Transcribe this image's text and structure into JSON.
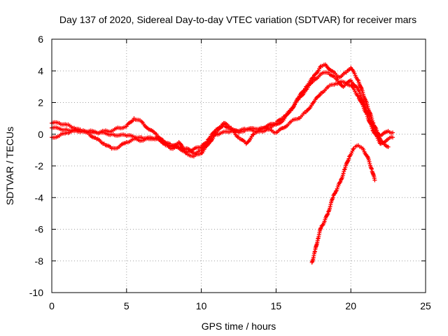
{
  "chart_data": {
    "type": "scatter",
    "title": "Day 137 of 2020, Sidereal Day-to-day VTEC variation (SDTVAR) for receiver mars",
    "xlabel": "GPS time / hours",
    "ylabel": "SDTVAR / TECUs",
    "xlim": [
      0,
      25
    ],
    "ylim": [
      -10,
      6
    ],
    "xticks": [
      0,
      5,
      10,
      15,
      20,
      25
    ],
    "yticks": [
      -10,
      -8,
      -6,
      -4,
      -2,
      0,
      2,
      4,
      6
    ],
    "grid": true,
    "marker": "+",
    "marker_color": "#ff0000",
    "series": [
      {
        "x": [
          0.0,
          0.5,
          1.0,
          1.5,
          2.0,
          2.5,
          3.0,
          3.5,
          4.0,
          4.5,
          5.0,
          5.5,
          6.0,
          6.5,
          7.0,
          7.5,
          8.0,
          8.5,
          9.0,
          9.5,
          10.0,
          10.5,
          11.0,
          11.5,
          12.0,
          12.5,
          13.0,
          13.5,
          14.0,
          14.5,
          15.0,
          15.5,
          16.0,
          16.5,
          17.0,
          17.5,
          18.0,
          18.5,
          19.0,
          19.5,
          20.0,
          20.5,
          21.0,
          21.5,
          22.0,
          22.5,
          22.8
        ],
        "y": [
          0.7,
          0.7,
          0.6,
          0.4,
          0.2,
          0.2,
          0.1,
          0.2,
          0.2,
          0.4,
          0.5,
          1.0,
          0.8,
          0.3,
          0.0,
          -0.5,
          -0.9,
          -0.8,
          -0.9,
          -1.2,
          -1.0,
          -0.3,
          0.3,
          0.7,
          0.4,
          0.1,
          0.3,
          0.2,
          0.3,
          0.4,
          0.6,
          0.9,
          1.6,
          2.2,
          2.8,
          3.4,
          3.8,
          3.9,
          3.5,
          3.0,
          3.4,
          2.8,
          1.6,
          0.4,
          -0.1,
          0.2,
          0.1
        ]
      },
      {
        "x": [
          0.0,
          0.5,
          1.0,
          1.5,
          2.0,
          2.5,
          3.0,
          3.5,
          4.0,
          4.5,
          5.0,
          5.5,
          6.0,
          6.5,
          7.0,
          7.5,
          8.0,
          8.5,
          9.0,
          9.5,
          10.0,
          10.5,
          11.0,
          11.5,
          12.0,
          12.5,
          13.0,
          13.5,
          14.0,
          14.5,
          15.0,
          15.5,
          16.0,
          16.5,
          17.0,
          17.5,
          18.0,
          18.5,
          19.0,
          19.5,
          20.0,
          20.5,
          21.0,
          21.5,
          22.0,
          22.5,
          22.8
        ],
        "y": [
          -0.2,
          -0.1,
          0.1,
          0.2,
          0.2,
          0.0,
          -0.3,
          -0.6,
          -0.9,
          -0.8,
          -0.5,
          -0.3,
          -0.4,
          -0.3,
          -0.2,
          -0.6,
          -0.8,
          -0.5,
          -1.2,
          -1.4,
          -1.2,
          -0.6,
          0.1,
          0.6,
          0.3,
          -0.2,
          -0.6,
          0.0,
          0.2,
          0.3,
          0.1,
          0.4,
          0.8,
          1.0,
          1.4,
          2.0,
          2.6,
          3.0,
          3.2,
          3.3,
          3.1,
          2.4,
          1.4,
          0.2,
          -0.6,
          -0.3,
          -0.2
        ]
      },
      {
        "x": [
          0.0,
          1.0,
          2.0,
          3.0,
          4.0,
          5.0,
          6.0,
          7.0,
          8.0,
          9.0,
          10.0,
          11.0,
          12.0,
          13.0,
          14.0,
          15.0,
          15.5,
          16.0,
          16.5,
          17.0,
          17.5,
          18.0,
          18.3,
          18.7,
          19.2,
          19.7,
          20.0,
          20.5,
          21.0,
          21.5,
          22.0,
          22.5
        ],
        "y": [
          0.4,
          0.3,
          0.2,
          0.1,
          0.0,
          -0.1,
          -0.2,
          -0.3,
          -0.7,
          -1.1,
          -0.8,
          0.0,
          0.2,
          0.3,
          0.4,
          0.7,
          1.1,
          1.5,
          2.3,
          3.0,
          3.6,
          4.3,
          4.4,
          4.0,
          3.6,
          3.9,
          4.2,
          3.4,
          2.1,
          0.7,
          -0.4,
          -0.8
        ]
      },
      {
        "x": [
          17.4,
          17.6,
          17.8,
          18.0,
          18.2,
          18.5,
          18.8,
          19.0,
          19.3,
          19.6,
          19.9,
          20.2,
          20.5,
          20.8,
          21.1,
          21.4,
          21.6
        ],
        "y": [
          -8.1,
          -7.4,
          -6.6,
          -5.9,
          -5.6,
          -4.9,
          -4.0,
          -3.6,
          -3.0,
          -2.2,
          -1.4,
          -0.9,
          -0.7,
          -0.9,
          -1.4,
          -2.2,
          -2.9
        ]
      }
    ]
  }
}
